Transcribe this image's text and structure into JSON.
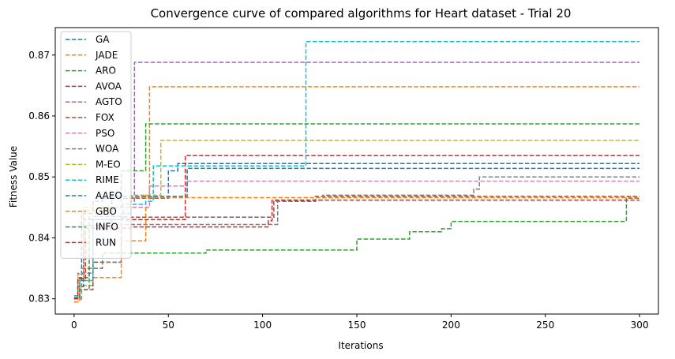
{
  "chart_data": {
    "type": "line",
    "title": "Convergence curve of compared algorithms for Heart dataset - Trial 20",
    "xlabel": "Iterations",
    "ylabel": "Fitness Value",
    "xlim": [
      -10,
      310
    ],
    "ylim": [
      0.8275,
      0.8745
    ],
    "xticks": [
      0,
      50,
      100,
      150,
      200,
      250,
      300
    ],
    "yticks": [
      0.83,
      0.84,
      0.85,
      0.86,
      0.87
    ],
    "ytick_labels": [
      "0.83",
      "0.84",
      "0.85",
      "0.86",
      "0.87"
    ],
    "grid": false,
    "legend_position": "top-left",
    "line_style": "dashed-step",
    "series": [
      {
        "name": "GA",
        "color": "#1f77b4",
        "points": [
          [
            0,
            0.83
          ],
          [
            2,
            0.833
          ],
          [
            4,
            0.844
          ],
          [
            10,
            0.846
          ],
          [
            15,
            0.8465
          ],
          [
            50,
            0.851
          ],
          [
            55,
            0.8522
          ],
          [
            300,
            0.8522
          ]
        ]
      },
      {
        "name": "JADE",
        "color": "#ff7f0e",
        "points": [
          [
            0,
            0.8295
          ],
          [
            3,
            0.8322
          ],
          [
            10,
            0.8335
          ],
          [
            25,
            0.8395
          ],
          [
            35,
            0.8395
          ],
          [
            38,
            0.847
          ],
          [
            40,
            0.8648
          ],
          [
            300,
            0.8648
          ]
        ]
      },
      {
        "name": "ARO",
        "color": "#2ca02c",
        "points": [
          [
            0,
            0.83
          ],
          [
            3,
            0.8315
          ],
          [
            8,
            0.835
          ],
          [
            15,
            0.8375
          ],
          [
            55,
            0.8375
          ],
          [
            70,
            0.838
          ],
          [
            140,
            0.838
          ],
          [
            150,
            0.8398
          ],
          [
            170,
            0.8398
          ],
          [
            178,
            0.841
          ],
          [
            192,
            0.841
          ],
          [
            195,
            0.8415
          ],
          [
            200,
            0.8427
          ],
          [
            290,
            0.8427
          ],
          [
            293,
            0.8465
          ],
          [
            300,
            0.8465
          ]
        ]
      },
      {
        "name": "AVOA",
        "color": "#d62728",
        "points": [
          [
            0,
            0.83
          ],
          [
            2,
            0.833
          ],
          [
            5,
            0.843
          ],
          [
            30,
            0.843
          ],
          [
            59,
            0.8535
          ],
          [
            300,
            0.8535
          ]
        ]
      },
      {
        "name": "AGTO",
        "color": "#9467bd",
        "points": [
          [
            0,
            0.8302
          ],
          [
            2,
            0.8342
          ],
          [
            10,
            0.8435
          ],
          [
            25,
            0.844
          ],
          [
            30,
            0.846
          ],
          [
            32,
            0.8688
          ],
          [
            300,
            0.8688
          ]
        ]
      },
      {
        "name": "FOX",
        "color": "#8c564b",
        "points": [
          [
            0,
            0.83
          ],
          [
            3,
            0.8315
          ],
          [
            10,
            0.836
          ],
          [
            25,
            0.8434
          ],
          [
            103,
            0.8434
          ],
          [
            106,
            0.846
          ],
          [
            125,
            0.846
          ],
          [
            128,
            0.8468
          ],
          [
            300,
            0.8468
          ]
        ]
      },
      {
        "name": "PSO",
        "color": "#e377c2",
        "points": [
          [
            0,
            0.83
          ],
          [
            2,
            0.8335
          ],
          [
            5,
            0.844
          ],
          [
            20,
            0.845
          ],
          [
            40,
            0.8485
          ],
          [
            60,
            0.8493
          ],
          [
            300,
            0.8493
          ]
        ]
      },
      {
        "name": "WOA",
        "color": "#7f7f7f",
        "points": [
          [
            0,
            0.83
          ],
          [
            4,
            0.835
          ],
          [
            15,
            0.836
          ],
          [
            25,
            0.8422
          ],
          [
            105,
            0.8422
          ],
          [
            108,
            0.8462
          ],
          [
            130,
            0.8462
          ],
          [
            132,
            0.847
          ],
          [
            150,
            0.847
          ],
          [
            212,
            0.848
          ],
          [
            215,
            0.85
          ],
          [
            300,
            0.85
          ]
        ]
      },
      {
        "name": "M-EO",
        "color": "#bcbd22",
        "points": [
          [
            0,
            0.8302
          ],
          [
            2,
            0.834
          ],
          [
            5,
            0.845
          ],
          [
            20,
            0.8468
          ],
          [
            30,
            0.847
          ],
          [
            46,
            0.856
          ],
          [
            300,
            0.856
          ]
        ]
      },
      {
        "name": "RIME",
        "color": "#17becf",
        "points": [
          [
            0,
            0.8305
          ],
          [
            2,
            0.833
          ],
          [
            10,
            0.843
          ],
          [
            26,
            0.8455
          ],
          [
            38,
            0.846
          ],
          [
            42,
            0.8518
          ],
          [
            121,
            0.8518
          ],
          [
            123,
            0.8722
          ],
          [
            300,
            0.8722
          ]
        ]
      },
      {
        "name": "AAEO",
        "color": "#1f77b4",
        "points": [
          [
            0,
            0.8302
          ],
          [
            2,
            0.832
          ],
          [
            5,
            0.842
          ],
          [
            20,
            0.8468
          ],
          [
            60,
            0.8514
          ],
          [
            300,
            0.8514
          ]
        ]
      },
      {
        "name": "GBO",
        "color": "#ff7f0e",
        "points": [
          [
            0,
            0.83
          ],
          [
            2,
            0.8335
          ],
          [
            5,
            0.8445
          ],
          [
            20,
            0.845
          ],
          [
            30,
            0.8466
          ],
          [
            300,
            0.8466
          ]
        ]
      },
      {
        "name": "INFO",
        "color": "#2ca02c",
        "points": [
          [
            0,
            0.83
          ],
          [
            3,
            0.8335
          ],
          [
            8,
            0.844
          ],
          [
            15,
            0.845
          ],
          [
            25,
            0.851
          ],
          [
            35,
            0.851
          ],
          [
            38,
            0.8587
          ],
          [
            300,
            0.8587
          ]
        ]
      },
      {
        "name": "RUN",
        "color": "#d62728",
        "points": [
          [
            0,
            0.83
          ],
          [
            2,
            0.8333
          ],
          [
            6,
            0.8416
          ],
          [
            30,
            0.8418
          ],
          [
            100,
            0.8418
          ],
          [
            103,
            0.8428
          ],
          [
            105,
            0.8462
          ],
          [
            300,
            0.8462
          ]
        ]
      }
    ]
  }
}
